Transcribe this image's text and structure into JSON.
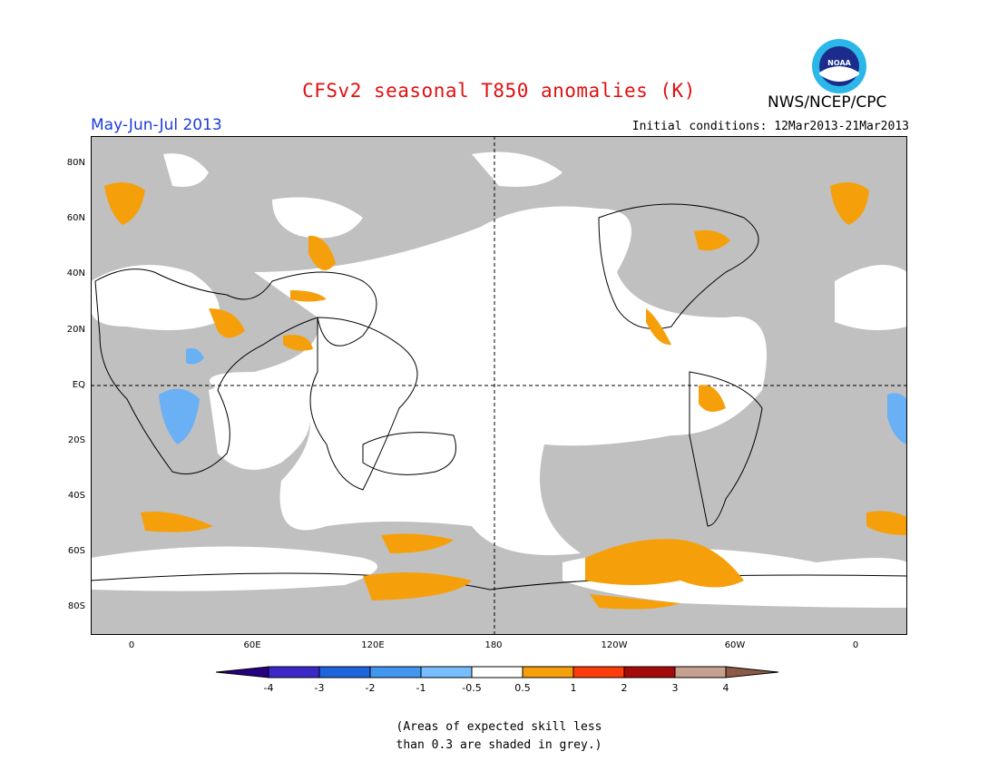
{
  "header": {
    "title": "CFSv2 seasonal T850 anomalies (K)",
    "agency": "NWS/NCEP/CPC",
    "logo_text": "NOAA",
    "period": "May-Jun-Jul 2013",
    "initial_conditions": "Initial conditions: 12Mar2013-21Mar2013"
  },
  "map": {
    "lat_labels": [
      "80N",
      "60N",
      "40N",
      "20N",
      "EQ",
      "20S",
      "40S",
      "60S",
      "80S"
    ],
    "lon_labels": [
      "0",
      "60E",
      "120E",
      "180",
      "120W",
      "60W",
      "0"
    ]
  },
  "legend": {
    "labels": [
      "-4",
      "-3",
      "-2",
      "-1",
      "-0.5",
      "0.5",
      "1",
      "2",
      "3",
      "4"
    ],
    "colors": [
      "#250080",
      "#3c28c8",
      "#1e64dc",
      "#4196f0",
      "#78beff",
      "#ffffff",
      "#f5a00a",
      "#ff3c0a",
      "#a50a0a",
      "#c8a090",
      "#8c5a46"
    ]
  },
  "footnote": {
    "line1": "(Areas of expected skill less",
    "line2": "than 0.3 are shaded in grey.)"
  },
  "colors": {
    "title": "#e01010",
    "period": "#1e3cd8",
    "grey_skill": "#c0c0c0",
    "warm": "#f5a00a",
    "cool": "#6ab0f5"
  }
}
